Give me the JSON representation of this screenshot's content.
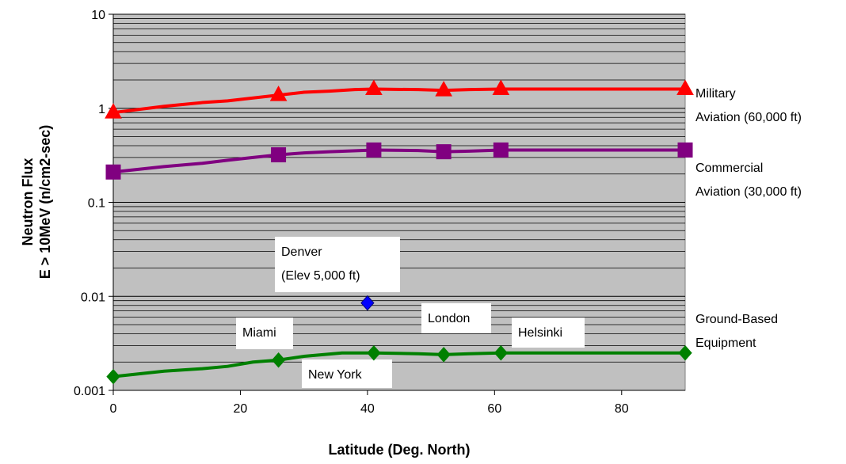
{
  "chart_data": {
    "type": "line",
    "title": "",
    "xlabel": "Latitude (Deg. North)",
    "ylabel_lines": [
      "Neutron Flux",
      "E > 10MeV (n/cm2-sec)"
    ],
    "xlim": [
      0,
      90
    ],
    "ylim": [
      0.001,
      10
    ],
    "yscale": "log",
    "x_ticks": [
      "0",
      "20",
      "40",
      "60",
      "80"
    ],
    "y_ticks": [
      "0.001",
      "0.01",
      "0.1",
      "1",
      "10"
    ],
    "grid": "horizontal",
    "plot_background": "#c0c0c0",
    "series": [
      {
        "name_lines": [
          "Military",
          "Aviation (60,000 ft)"
        ],
        "color": "#ff0000",
        "marker": "triangle",
        "markers": [
          {
            "x": 0,
            "y": 0.9
          },
          {
            "x": 26,
            "y": 1.38
          },
          {
            "x": 41,
            "y": 1.6
          },
          {
            "x": 52,
            "y": 1.55
          },
          {
            "x": 61,
            "y": 1.6
          },
          {
            "x": 90,
            "y": 1.6
          }
        ],
        "line": [
          {
            "x": 0,
            "y": 0.9
          },
          {
            "x": 8,
            "y": 1.05
          },
          {
            "x": 14,
            "y": 1.15
          },
          {
            "x": 18,
            "y": 1.2
          },
          {
            "x": 26,
            "y": 1.38
          },
          {
            "x": 30,
            "y": 1.48
          },
          {
            "x": 34,
            "y": 1.52
          },
          {
            "x": 38,
            "y": 1.58
          },
          {
            "x": 41,
            "y": 1.6
          },
          {
            "x": 48,
            "y": 1.58
          },
          {
            "x": 52,
            "y": 1.55
          },
          {
            "x": 56,
            "y": 1.58
          },
          {
            "x": 61,
            "y": 1.6
          },
          {
            "x": 90,
            "y": 1.6
          }
        ]
      },
      {
        "name_lines": [
          "Commercial",
          "Aviation (30,000 ft)"
        ],
        "color": "#800080",
        "marker": "square",
        "markers": [
          {
            "x": 0,
            "y": 0.21
          },
          {
            "x": 26,
            "y": 0.32
          },
          {
            "x": 41,
            "y": 0.36
          },
          {
            "x": 52,
            "y": 0.345
          },
          {
            "x": 61,
            "y": 0.36
          },
          {
            "x": 90,
            "y": 0.36
          }
        ],
        "line": [
          {
            "x": 0,
            "y": 0.21
          },
          {
            "x": 8,
            "y": 0.24
          },
          {
            "x": 14,
            "y": 0.26
          },
          {
            "x": 18,
            "y": 0.28
          },
          {
            "x": 22,
            "y": 0.3
          },
          {
            "x": 26,
            "y": 0.32
          },
          {
            "x": 30,
            "y": 0.335
          },
          {
            "x": 34,
            "y": 0.345
          },
          {
            "x": 41,
            "y": 0.36
          },
          {
            "x": 48,
            "y": 0.355
          },
          {
            "x": 52,
            "y": 0.345
          },
          {
            "x": 56,
            "y": 0.35
          },
          {
            "x": 61,
            "y": 0.36
          },
          {
            "x": 90,
            "y": 0.36
          }
        ]
      },
      {
        "name_lines": [
          "Ground-Based",
          "Equipment"
        ],
        "color": "#008000",
        "marker": "diamond",
        "markers": [
          {
            "x": 0,
            "y": 0.0014
          },
          {
            "x": 26,
            "y": 0.0021
          },
          {
            "x": 41,
            "y": 0.0025
          },
          {
            "x": 52,
            "y": 0.0024
          },
          {
            "x": 61,
            "y": 0.0025
          },
          {
            "x": 90,
            "y": 0.0025
          }
        ],
        "line": [
          {
            "x": 0,
            "y": 0.0014
          },
          {
            "x": 8,
            "y": 0.0016
          },
          {
            "x": 14,
            "y": 0.0017
          },
          {
            "x": 18,
            "y": 0.0018
          },
          {
            "x": 22,
            "y": 0.002
          },
          {
            "x": 26,
            "y": 0.0021
          },
          {
            "x": 30,
            "y": 0.0023
          },
          {
            "x": 36,
            "y": 0.0025
          },
          {
            "x": 41,
            "y": 0.0025
          },
          {
            "x": 48,
            "y": 0.00245
          },
          {
            "x": 52,
            "y": 0.0024
          },
          {
            "x": 56,
            "y": 0.00245
          },
          {
            "x": 61,
            "y": 0.0025
          },
          {
            "x": 90,
            "y": 0.0025
          }
        ]
      },
      {
        "name": "Denver",
        "color": "#0000ff",
        "marker": "diamond",
        "markers": [
          {
            "x": 40,
            "y": 0.0085
          }
        ]
      }
    ],
    "annotations": [
      {
        "lines": [
          "Denver",
          "(Elev 5,000 ft)"
        ],
        "anchor": {
          "x": 40,
          "y": 0.0085
        }
      },
      {
        "lines": [
          "Miami"
        ],
        "anchor": {
          "x": 26,
          "y": 0.0021
        }
      },
      {
        "lines": [
          "New York"
        ],
        "anchor": {
          "x": 41,
          "y": 0.0025
        }
      },
      {
        "lines": [
          "London"
        ],
        "anchor": {
          "x": 52,
          "y": 0.0024
        }
      },
      {
        "lines": [
          "Helsinki"
        ],
        "anchor": {
          "x": 61,
          "y": 0.0025
        }
      }
    ]
  }
}
